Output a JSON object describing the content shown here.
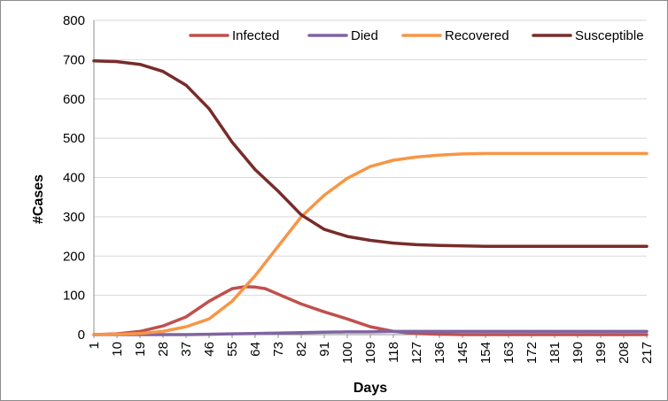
{
  "chart_data": {
    "type": "line",
    "title": "",
    "xlabel": "Days",
    "ylabel": "#Cases",
    "ylim": [
      0,
      800
    ],
    "xlim": [
      1,
      217
    ],
    "y_ticks": [
      0,
      100,
      200,
      300,
      400,
      500,
      600,
      700,
      800
    ],
    "x_ticks": [
      1,
      10,
      19,
      28,
      37,
      46,
      55,
      64,
      73,
      82,
      91,
      100,
      109,
      118,
      127,
      136,
      145,
      154,
      163,
      172,
      181,
      190,
      199,
      208,
      217
    ],
    "grid": "horizontal",
    "legend_position": "top",
    "series": [
      {
        "name": "Infected",
        "color": "#c0504d",
        "x": [
          1,
          10,
          19,
          28,
          37,
          46,
          55,
          60,
          64,
          68,
          73,
          82,
          91,
          100,
          109,
          118,
          127,
          136,
          145,
          154,
          163,
          172,
          181,
          190,
          199,
          208,
          217
        ],
        "y": [
          0,
          2,
          8,
          22,
          45,
          85,
          117,
          122,
          121,
          117,
          103,
          78,
          58,
          40,
          20,
          8,
          3,
          1,
          0,
          0,
          0,
          0,
          0,
          0,
          0,
          0,
          0
        ]
      },
      {
        "name": "Died",
        "color": "#8064a2",
        "x": [
          1,
          10,
          19,
          28,
          37,
          46,
          55,
          64,
          73,
          82,
          91,
          100,
          109,
          118,
          127,
          136,
          145,
          154,
          163,
          172,
          181,
          190,
          199,
          208,
          217
        ],
        "y": [
          0,
          0,
          0,
          0,
          0,
          1,
          2,
          3,
          4,
          5,
          6,
          7,
          7,
          8,
          8,
          8,
          8,
          8,
          8,
          8,
          8,
          8,
          8,
          8,
          8
        ]
      },
      {
        "name": "Recovered",
        "color": "#f79646",
        "x": [
          1,
          10,
          19,
          28,
          37,
          46,
          55,
          64,
          73,
          82,
          91,
          100,
          109,
          118,
          127,
          136,
          145,
          154,
          163,
          172,
          181,
          190,
          199,
          208,
          217
        ],
        "y": [
          0,
          1,
          3,
          8,
          20,
          40,
          85,
          150,
          225,
          300,
          355,
          398,
          428,
          444,
          452,
          457,
          460,
          461,
          461,
          461,
          461,
          461,
          461,
          461,
          461
        ]
      },
      {
        "name": "Susceptible",
        "color": "#772c2a",
        "x": [
          1,
          10,
          19,
          28,
          37,
          46,
          55,
          64,
          73,
          82,
          91,
          100,
          109,
          118,
          127,
          136,
          145,
          154,
          163,
          172,
          181,
          190,
          199,
          208,
          217
        ],
        "y": [
          697,
          695,
          688,
          670,
          635,
          575,
          490,
          420,
          365,
          305,
          268,
          250,
          240,
          233,
          229,
          227,
          226,
          225,
          225,
          225,
          225,
          225,
          225,
          225,
          225
        ]
      }
    ]
  }
}
